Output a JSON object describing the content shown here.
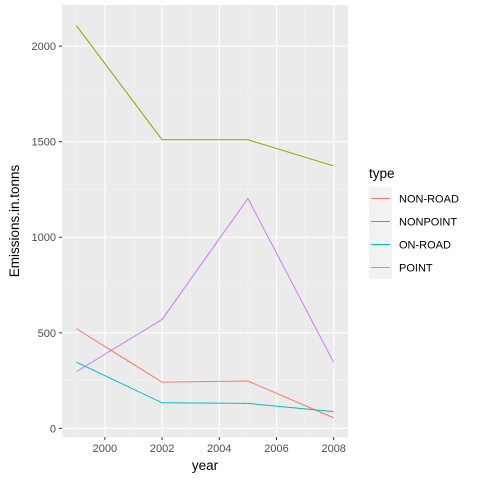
{
  "chart_data": {
    "type": "line",
    "xlabel": "year",
    "ylabel": "Emissions.in.tonns",
    "x": [
      1999,
      2002,
      2005,
      2008
    ],
    "xlim": [
      1998.5,
      2008.5
    ],
    "ylim": [
      -45,
      2215
    ],
    "x_ticks": [
      2000,
      2002,
      2004,
      2006,
      2008
    ],
    "y_ticks": [
      0,
      500,
      1000,
      1500,
      2000
    ],
    "x_tick_labels": [
      "2000",
      "2002",
      "2004",
      "2006",
      "2008"
    ],
    "y_tick_labels": [
      "0",
      "500",
      "1000",
      "1500",
      "2000"
    ],
    "grid": true,
    "legend_title": "type",
    "legend_position": "right",
    "series": [
      {
        "name": "NON-ROAD",
        "color": "#F8766D",
        "values": [
          522,
          242,
          248,
          55
        ]
      },
      {
        "name": "NONPOINT",
        "color": "#7CAE00",
        "values": [
          2108,
          1510,
          1510,
          1373
        ]
      },
      {
        "name": "ON-ROAD",
        "color": "#00BFC4",
        "values": [
          347,
          134,
          131,
          88
        ]
      },
      {
        "name": "POINT",
        "color": "#C77CFF",
        "values": [
          297,
          570,
          1203,
          345
        ]
      }
    ]
  }
}
